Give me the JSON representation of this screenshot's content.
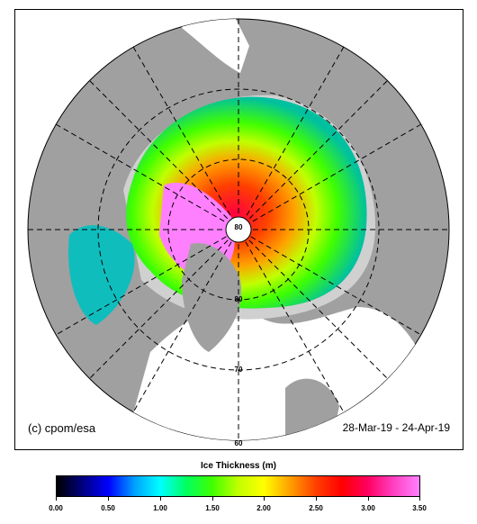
{
  "copyright": "(c) cpom/esa",
  "date_range": "28-Mar-19 - 24-Apr-19",
  "colorbar": {
    "title": "Ice Thickness (m)",
    "ticks": [
      "0.00",
      "0.50",
      "1.00",
      "1.50",
      "2.00",
      "2.50",
      "3.00",
      "3.50"
    ],
    "min": 0,
    "max": 3.5,
    "colors": [
      "#000000",
      "#000080",
      "#0000ff",
      "#00a0ff",
      "#00ffff",
      "#00ff60",
      "#40ff00",
      "#c0ff00",
      "#ffff00",
      "#ffa000",
      "#ff4000",
      "#ff0000",
      "#ff0060",
      "#ff40c0",
      "#ff80ff"
    ]
  },
  "latitude_labels": [
    "80",
    "80",
    "70",
    "60"
  ],
  "map_colors": {
    "land": "#a0a0a0",
    "ocean": "#ffffff",
    "coast_ice": "#d0d0d0"
  }
}
